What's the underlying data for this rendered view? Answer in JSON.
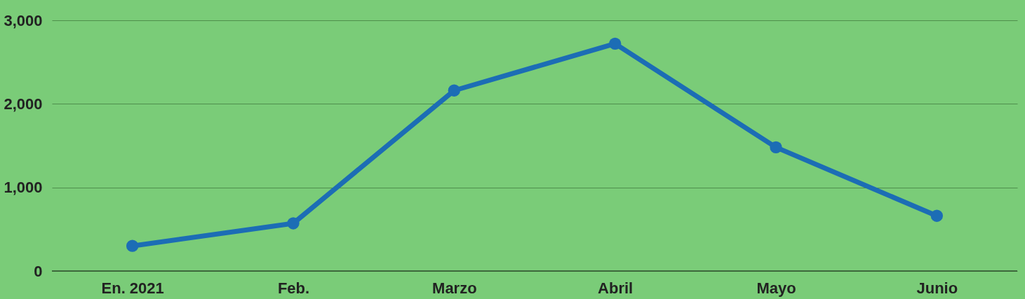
{
  "chart_data": {
    "type": "line",
    "categories": [
      "En. 2021",
      "Feb.",
      "Marzo",
      "Abril",
      "Mayo",
      "Junio"
    ],
    "series": [
      {
        "color": "#1c6db5",
        "values": [
          300,
          570,
          2160,
          2720,
          1480,
          660
        ]
      }
    ],
    "ylim": [
      0,
      3000
    ],
    "yticks": [
      {
        "value": 0,
        "label": "0"
      },
      {
        "value": 1000,
        "label": "1,000"
      },
      {
        "value": 2000,
        "label": "2,000"
      },
      {
        "value": 3000,
        "label": "3,000"
      }
    ],
    "grid": "y",
    "marker": "circle",
    "line_style": "solid"
  }
}
